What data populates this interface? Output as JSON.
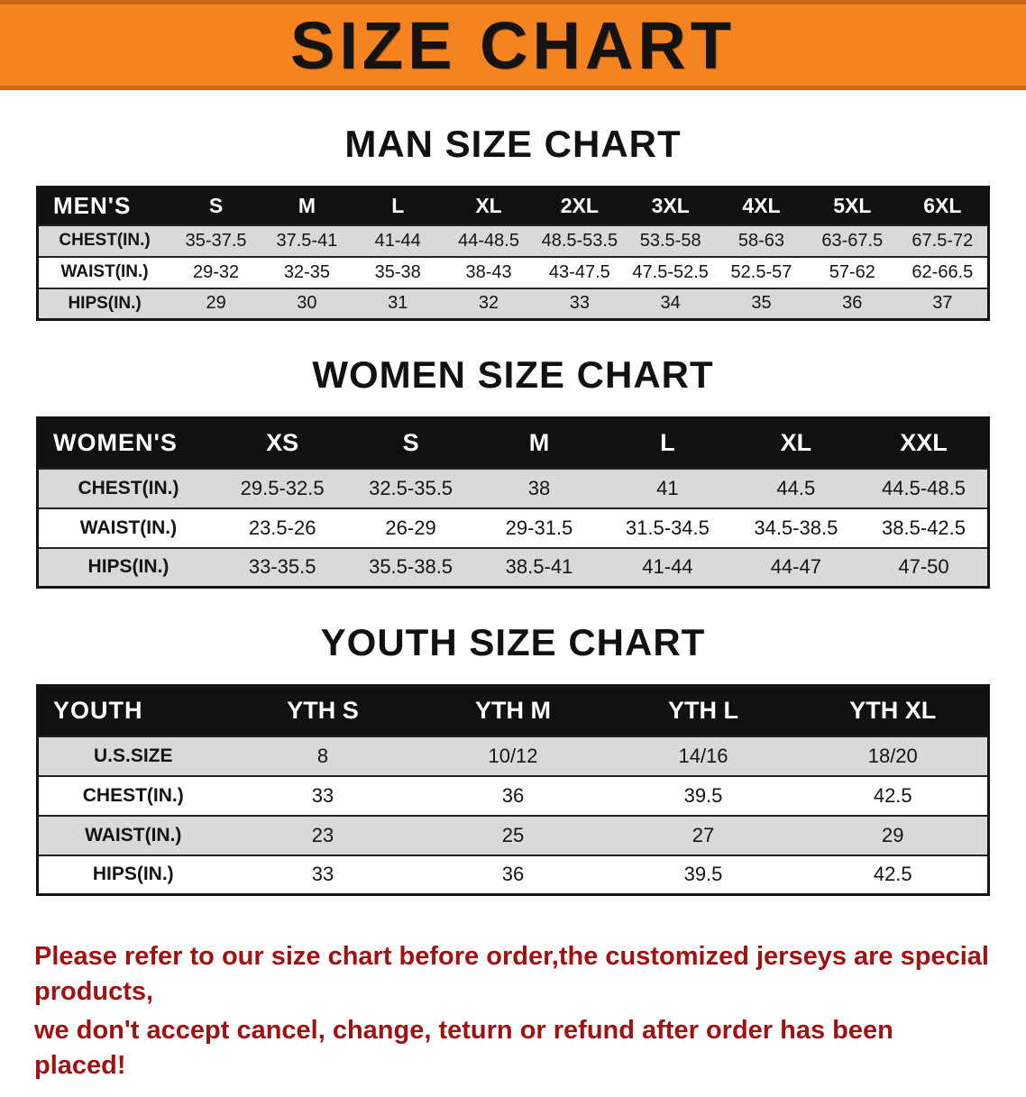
{
  "banner": {
    "title": "SIZE CHART"
  },
  "sections": [
    {
      "title": "MAN SIZE CHART",
      "table": {
        "header": [
          "MEN'S",
          "S",
          "M",
          "L",
          "XL",
          "2XL",
          "3XL",
          "4XL",
          "5XL",
          "6XL"
        ],
        "rows": [
          {
            "label": "CHEST(IN.)",
            "values": [
              "35-37.5",
              "37.5-41",
              "41-44",
              "44-48.5",
              "48.5-53.5",
              "53.5-58",
              "58-63",
              "63-67.5",
              "67.5-72"
            ]
          },
          {
            "label": "WAIST(IN.)",
            "values": [
              "29-32",
              "32-35",
              "35-38",
              "38-43",
              "43-47.5",
              "47.5-52.5",
              "52.5-57",
              "57-62",
              "62-66.5"
            ]
          },
          {
            "label": "HIPS(IN.)",
            "values": [
              "29",
              "30",
              "31",
              "32",
              "33",
              "34",
              "35",
              "36",
              "37"
            ]
          }
        ]
      }
    },
    {
      "title": "WOMEN SIZE CHART",
      "table": {
        "header": [
          "WOMEN'S",
          "XS",
          "S",
          "M",
          "L",
          "XL",
          "XXL"
        ],
        "rows": [
          {
            "label": "CHEST(IN.)",
            "values": [
              "29.5-32.5",
              "32.5-35.5",
              "38",
              "41",
              "44.5",
              "44.5-48.5"
            ]
          },
          {
            "label": "WAIST(IN.)",
            "values": [
              "23.5-26",
              "26-29",
              "29-31.5",
              "31.5-34.5",
              "34.5-38.5",
              "38.5-42.5"
            ]
          },
          {
            "label": "HIPS(IN.)",
            "values": [
              "33-35.5",
              "35.5-38.5",
              "38.5-41",
              "41-44",
              "44-47",
              "47-50"
            ]
          }
        ]
      }
    },
    {
      "title": "YOUTH SIZE CHART",
      "table": {
        "header": [
          "YOUTH",
          "YTH S",
          "YTH M",
          "YTH L",
          "YTH XL"
        ],
        "rows": [
          {
            "label": "U.S.SIZE",
            "values": [
              "8",
              "10/12",
              "14/16",
              "18/20"
            ]
          },
          {
            "label": "CHEST(IN.)",
            "values": [
              "33",
              "36",
              "39.5",
              "42.5"
            ]
          },
          {
            "label": "WAIST(IN.)",
            "values": [
              "23",
              "25",
              "27",
              "29"
            ]
          },
          {
            "label": "HIPS(IN.)",
            "values": [
              "33",
              "36",
              "39.5",
              "42.5"
            ]
          }
        ]
      }
    }
  ],
  "footer": {
    "line1": "Please refer to our size chart before order,the customized jerseys are special products,",
    "line2": "we don't accept cancel, change, teturn or refund after order has been placed!"
  },
  "colors": {
    "banner_bg": "#f5831f",
    "banner_edge": "#c96a12",
    "table_header_bg": "#111111",
    "row_stripe": "#d9d9d9",
    "footer_text": "#9e1212"
  }
}
